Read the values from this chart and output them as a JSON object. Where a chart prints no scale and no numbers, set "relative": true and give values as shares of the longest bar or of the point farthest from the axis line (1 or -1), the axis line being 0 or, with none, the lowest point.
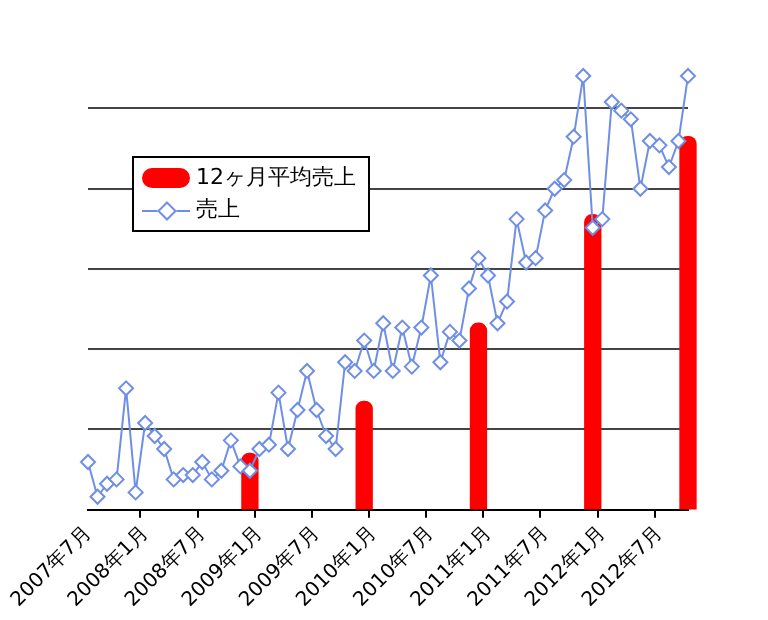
{
  "chart_data": {
    "type": "bar",
    "relative": true,
    "grid": "y",
    "legend": "top left",
    "categories": [
      "2007年7月",
      null,
      null,
      null,
      null,
      null,
      "2008年1月",
      null,
      null,
      null,
      null,
      null,
      "2008年7月",
      null,
      null,
      null,
      null,
      null,
      "2009年1月",
      null,
      null,
      null,
      null,
      null,
      "2009年7月",
      null,
      null,
      null,
      null,
      null,
      "2010年1月",
      null,
      null,
      null,
      null,
      null,
      "2010年7月",
      null,
      null,
      null,
      null,
      null,
      "2011年1月",
      null,
      null,
      null,
      null,
      null,
      "2011年7月",
      null,
      null,
      null,
      null,
      null,
      "2012年1月",
      null,
      null,
      null,
      null,
      null,
      "2012年7月",
      null,
      null,
      null
    ],
    "series": [
      {
        "name": "12ヶ月平均売上",
        "color": "#ff0000",
        "values": [
          null,
          null,
          null,
          null,
          null,
          null,
          null,
          null,
          null,
          null,
          null,
          null,
          null,
          null,
          null,
          null,
          null,
          0.13,
          null,
          null,
          null,
          null,
          null,
          null,
          null,
          null,
          null,
          null,
          null,
          0.25,
          null,
          null,
          null,
          null,
          null,
          null,
          null,
          null,
          null,
          null,
          null,
          0.43,
          null,
          null,
          null,
          null,
          null,
          null,
          null,
          null,
          null,
          null,
          null,
          0.68,
          null,
          null,
          null,
          null,
          null,
          null,
          null,
          null,
          null,
          0.86
        ]
      },
      {
        "name": "売上",
        "type": "line",
        "color": "#6f8fe6",
        "marker": "diamond",
        "values": [
          0.11,
          0.03,
          0.06,
          0.07,
          0.28,
          0.04,
          0.2,
          0.17,
          0.14,
          0.07,
          0.08,
          0.08,
          0.11,
          0.07,
          0.09,
          0.16,
          0.1,
          0.09,
          0.14,
          0.15,
          0.27,
          0.14,
          0.23,
          0.32,
          0.23,
          0.17,
          0.14,
          0.34,
          0.32,
          0.39,
          0.32,
          0.43,
          0.32,
          0.42,
          0.33,
          0.42,
          0.54,
          0.34,
          0.41,
          0.39,
          0.51,
          0.58,
          0.54,
          0.43,
          0.48,
          0.67,
          0.57,
          0.58,
          0.69,
          0.74,
          0.76,
          0.86,
          1,
          0.65,
          0.67,
          0.94,
          0.92,
          0.9,
          0.74,
          0.85,
          0.84,
          0.79,
          0.85,
          1
        ]
      }
    ]
  }
}
